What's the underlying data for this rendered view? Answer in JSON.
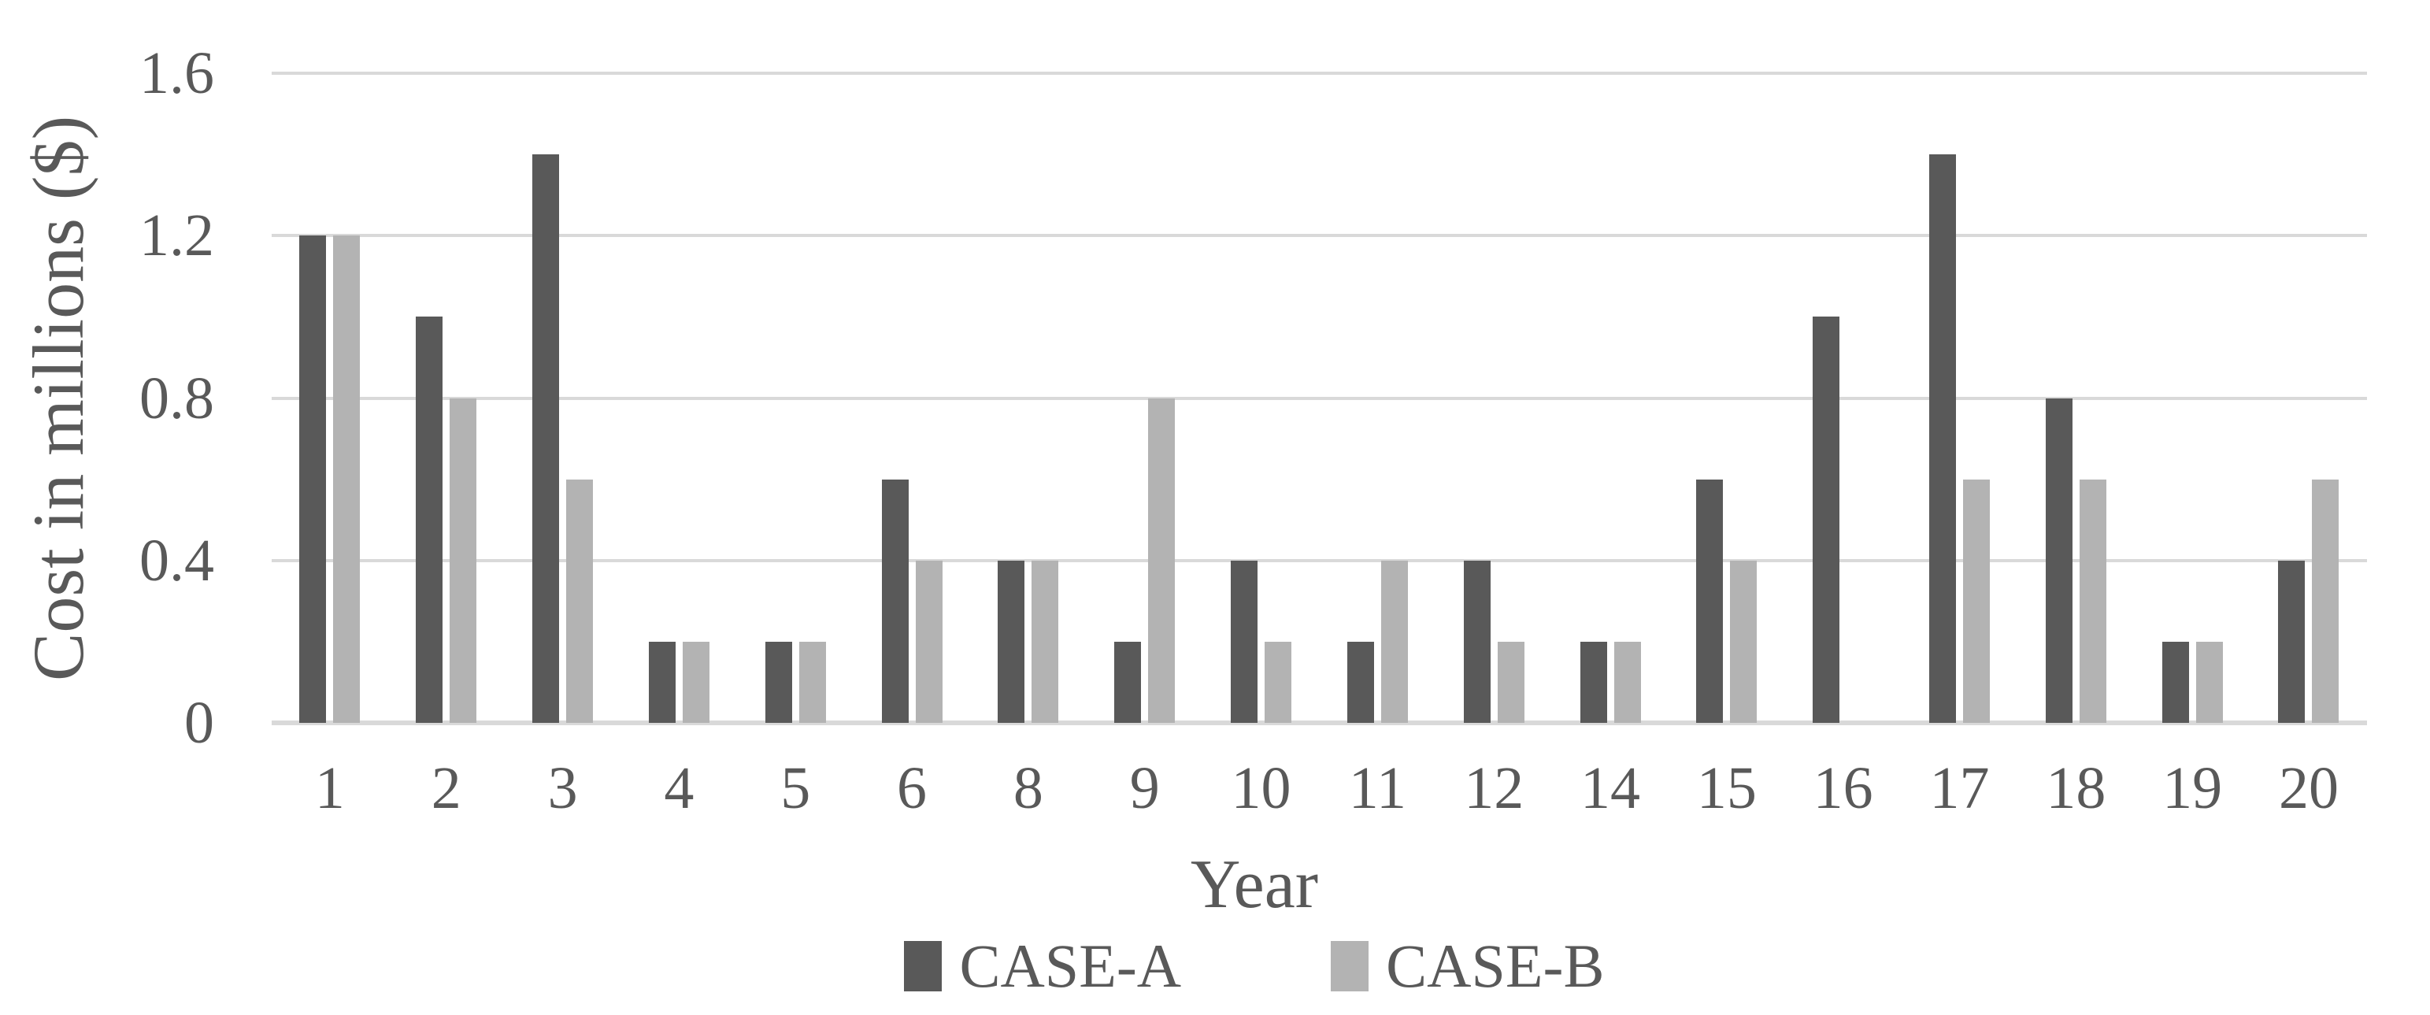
{
  "chart_data": {
    "type": "bar",
    "title": "",
    "xlabel": "Year",
    "ylabel": "Cost in millions ($)",
    "ylim": [
      0,
      1.6
    ],
    "yticks": [
      0,
      0.4,
      0.8,
      1.2,
      1.6
    ],
    "ytick_labels": [
      "0",
      "0.4",
      "0.8",
      "1.2",
      "1.6"
    ],
    "categories": [
      "1",
      "2",
      "3",
      "4",
      "5",
      "6",
      "8",
      "9",
      "10",
      "11",
      "12",
      "14",
      "15",
      "16",
      "17",
      "18",
      "19",
      "20"
    ],
    "series": [
      {
        "name": "CASE-A",
        "color": "#595959",
        "values": [
          1.2,
          1.0,
          1.4,
          0.2,
          0.2,
          0.6,
          0.4,
          0.2,
          0.4,
          0.2,
          0.4,
          0.2,
          0.6,
          1.0,
          1.4,
          0.8,
          0.2,
          0.4
        ]
      },
      {
        "name": "CASE-B",
        "color": "#b3b3b3",
        "values": [
          1.2,
          0.8,
          0.6,
          0.2,
          0.2,
          0.4,
          0.4,
          0.8,
          0.2,
          0.4,
          0.2,
          0.2,
          0.4,
          0,
          0.6,
          0.6,
          0.2,
          0.6
        ]
      }
    ],
    "grid": "horizontal",
    "gridline_color": "#d9d9d9",
    "text_color": "#595959",
    "background": "#ffffff",
    "legend_position": "bottom"
  }
}
